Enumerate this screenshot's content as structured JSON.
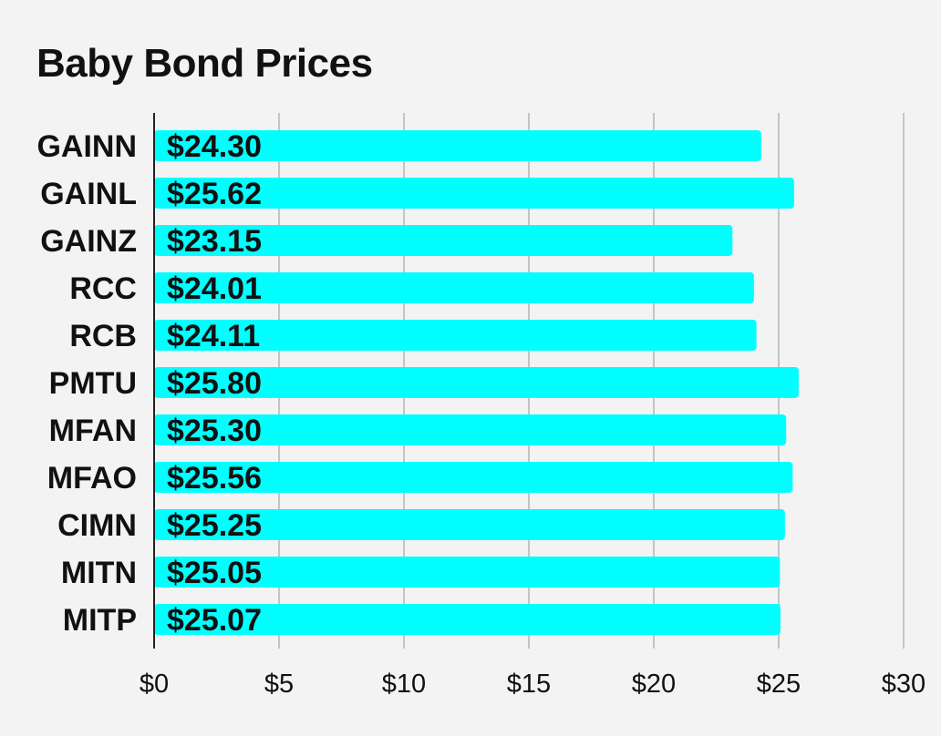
{
  "chart_data": {
    "type": "bar",
    "orientation": "horizontal",
    "title": "Baby Bond Prices",
    "categories": [
      "GAINN",
      "GAINL",
      "GAINZ",
      "RCC",
      "RCB",
      "PMTU",
      "MFAN",
      "MFAO",
      "CIMN",
      "MITN",
      "MITP"
    ],
    "values": [
      24.3,
      25.62,
      23.15,
      24.01,
      24.11,
      25.8,
      25.3,
      25.56,
      25.25,
      25.05,
      25.07
    ],
    "value_labels": [
      "$24.30",
      "$25.62",
      "$23.15",
      "$24.01",
      "$24.11",
      "$25.80",
      "$25.30",
      "$25.56",
      "$25.25",
      "$25.05",
      "$25.07"
    ],
    "xlim": [
      0,
      30
    ],
    "xticks": [
      0,
      5,
      10,
      15,
      20,
      25,
      30
    ],
    "xtick_labels": [
      "$0",
      "$5",
      "$10",
      "$15",
      "$20",
      "$25",
      "$30"
    ],
    "xlabel": "",
    "ylabel": "",
    "grid": "vertical",
    "legend": "none",
    "colors": {
      "bar": "#00ffff",
      "grid": "#c4c4c4",
      "axis": "#222222",
      "text": "#111111",
      "background": "#f3f3f3"
    }
  }
}
